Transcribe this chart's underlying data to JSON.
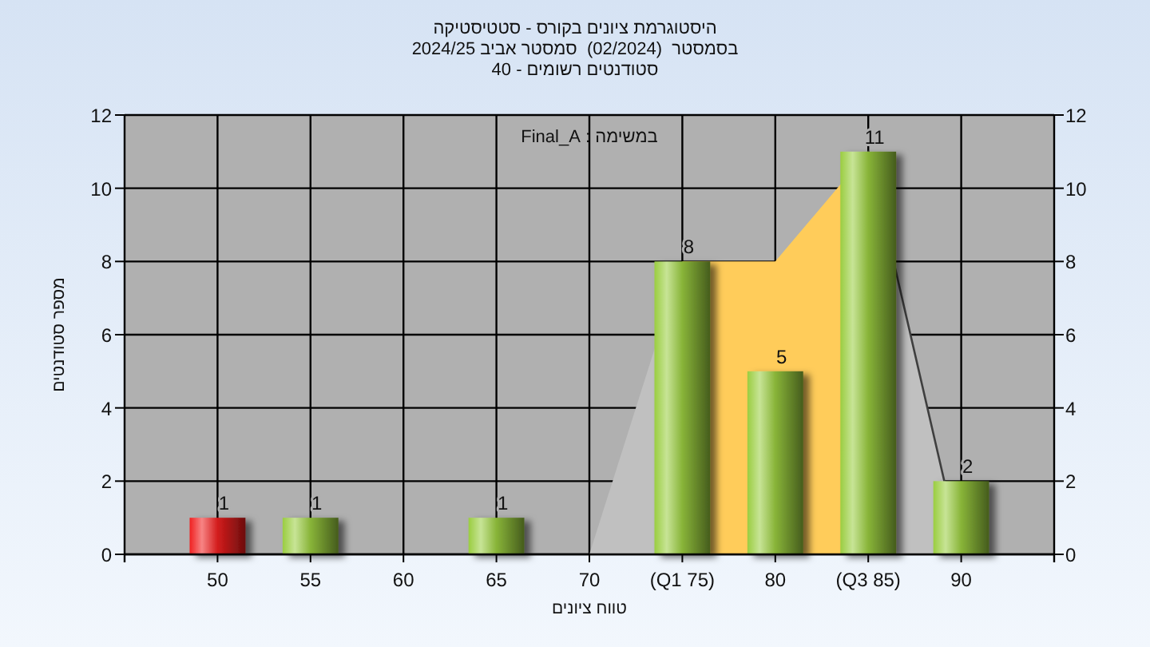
{
  "chart_data": {
    "type": "bar",
    "title": "היסטוגרמת ציונים בקורס - סטטיסטיקה",
    "subtitle": "בסמסטר  (02/2024)  סמסטר אביב 2024/25\nסטודנטים רשומים - 40",
    "xlabel": "טווח ציונים",
    "ylabel": "מספר סטודנטים",
    "annotations": [
      "במשימה : Final_A"
    ],
    "categories": [
      "50",
      "55",
      "60",
      "65",
      "70",
      "(Q1 75)",
      "80",
      "(Q3 85)",
      "90"
    ],
    "series": [
      {
        "type": "area",
        "color": "#c0c0c0",
        "values": [
          null,
          null,
          null,
          null,
          0,
          8,
          null,
          null,
          null
        ]
      },
      {
        "type": "area",
        "color": "#ffcc5a",
        "values": [
          null,
          null,
          null,
          null,
          null,
          8,
          8,
          11,
          null
        ]
      },
      {
        "type": "area",
        "color": "#c0c0c0",
        "line_style": "solid",
        "values": [
          null,
          null,
          null,
          null,
          null,
          null,
          null,
          11,
          0
        ]
      },
      {
        "colors": [
          "#f02020",
          "#9acd40",
          "#9acd40",
          "#9acd40",
          "#9acd40",
          "#9acd40",
          "#9acd40",
          "#9acd40",
          "#9acd40"
        ],
        "values": [
          1,
          1,
          0,
          1,
          0,
          8,
          5,
          11,
          2
        ],
        "value_labels": [
          "1",
          "1",
          null,
          "1",
          null,
          "8",
          "5",
          "11",
          "2"
        ]
      }
    ],
    "ylim": [
      0,
      12
    ],
    "yticks": [
      0,
      2,
      4,
      6,
      8,
      10,
      12
    ],
    "y2lim": [
      0,
      12
    ],
    "y2ticks": [
      0,
      2,
      4,
      6,
      8,
      10,
      12
    ],
    "grid": true
  }
}
